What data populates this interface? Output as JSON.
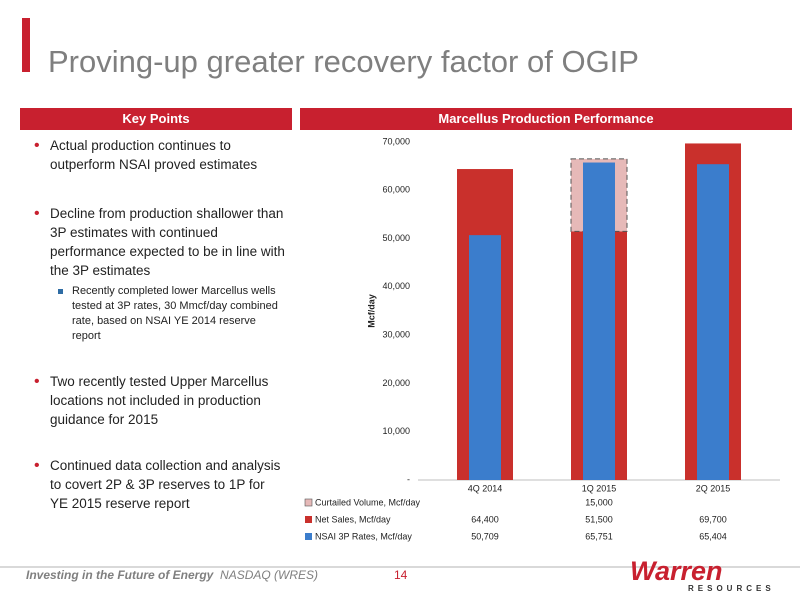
{
  "header": {
    "title": "Proving-up greater recovery factor of OGIP"
  },
  "key_points": {
    "heading": "Key Points",
    "items": [
      {
        "text": "Actual production continues to outperform NSAI proved estimates"
      },
      {
        "text": "Decline from production shallower than 3P estimates with continued performance expected to be in line with the 3P estimates",
        "sub": [
          "Recently completed lower Marcellus wells tested at 3P rates, 30 Mmcf/day combined rate, based on NSAI YE 2014 reserve report"
        ]
      },
      {
        "text": "Two recently tested Upper Marcellus locations not included in production guidance for 2015"
      },
      {
        "text": "Continued data collection and analysis to covert 2P & 3P reserves to 1P for YE 2015 reserve report"
      }
    ]
  },
  "chart_data": {
    "type": "bar",
    "title": "Marcellus Production Performance",
    "y_label": "Mcf/day",
    "categories": [
      "4Q 2014",
      "1Q 2015",
      "2Q 2015"
    ],
    "series": [
      {
        "name": "Curtailed Volume, Mcf/day",
        "color": "#e6b9b8",
        "values": [
          null,
          15000,
          null
        ],
        "value_labels": [
          null,
          "15,000",
          null
        ]
      },
      {
        "name": "Net Sales, Mcf/day",
        "color": "#c9302c",
        "values": [
          64400,
          51500,
          69700
        ],
        "value_labels": [
          "64,400",
          "51,500",
          "69,700"
        ]
      },
      {
        "name": "NSAI 3P Rates, Mcf/day",
        "color": "#3b7dcc",
        "values": [
          50709,
          65751,
          65404
        ],
        "value_labels": [
          "50,709",
          "65,751",
          "65,404"
        ]
      }
    ],
    "ylim": [
      0,
      70000
    ],
    "yticks": [
      {
        "value": 0,
        "label": "-"
      },
      {
        "value": 10000,
        "label": "10,000"
      },
      {
        "value": 20000,
        "label": "20,000"
      },
      {
        "value": 30000,
        "label": "30,000"
      },
      {
        "value": 40000,
        "label": "40,000"
      },
      {
        "value": 50000,
        "label": "50,000"
      },
      {
        "value": 60000,
        "label": "60,000"
      },
      {
        "value": 70000,
        "label": "70,000"
      }
    ],
    "grid": false
  },
  "footer": {
    "tagline": "Investing in the Future of Energy",
    "ticker": "NASDAQ (WRES)",
    "page": "14",
    "logo": "Warren",
    "logo_sub": "RESOURCES"
  }
}
